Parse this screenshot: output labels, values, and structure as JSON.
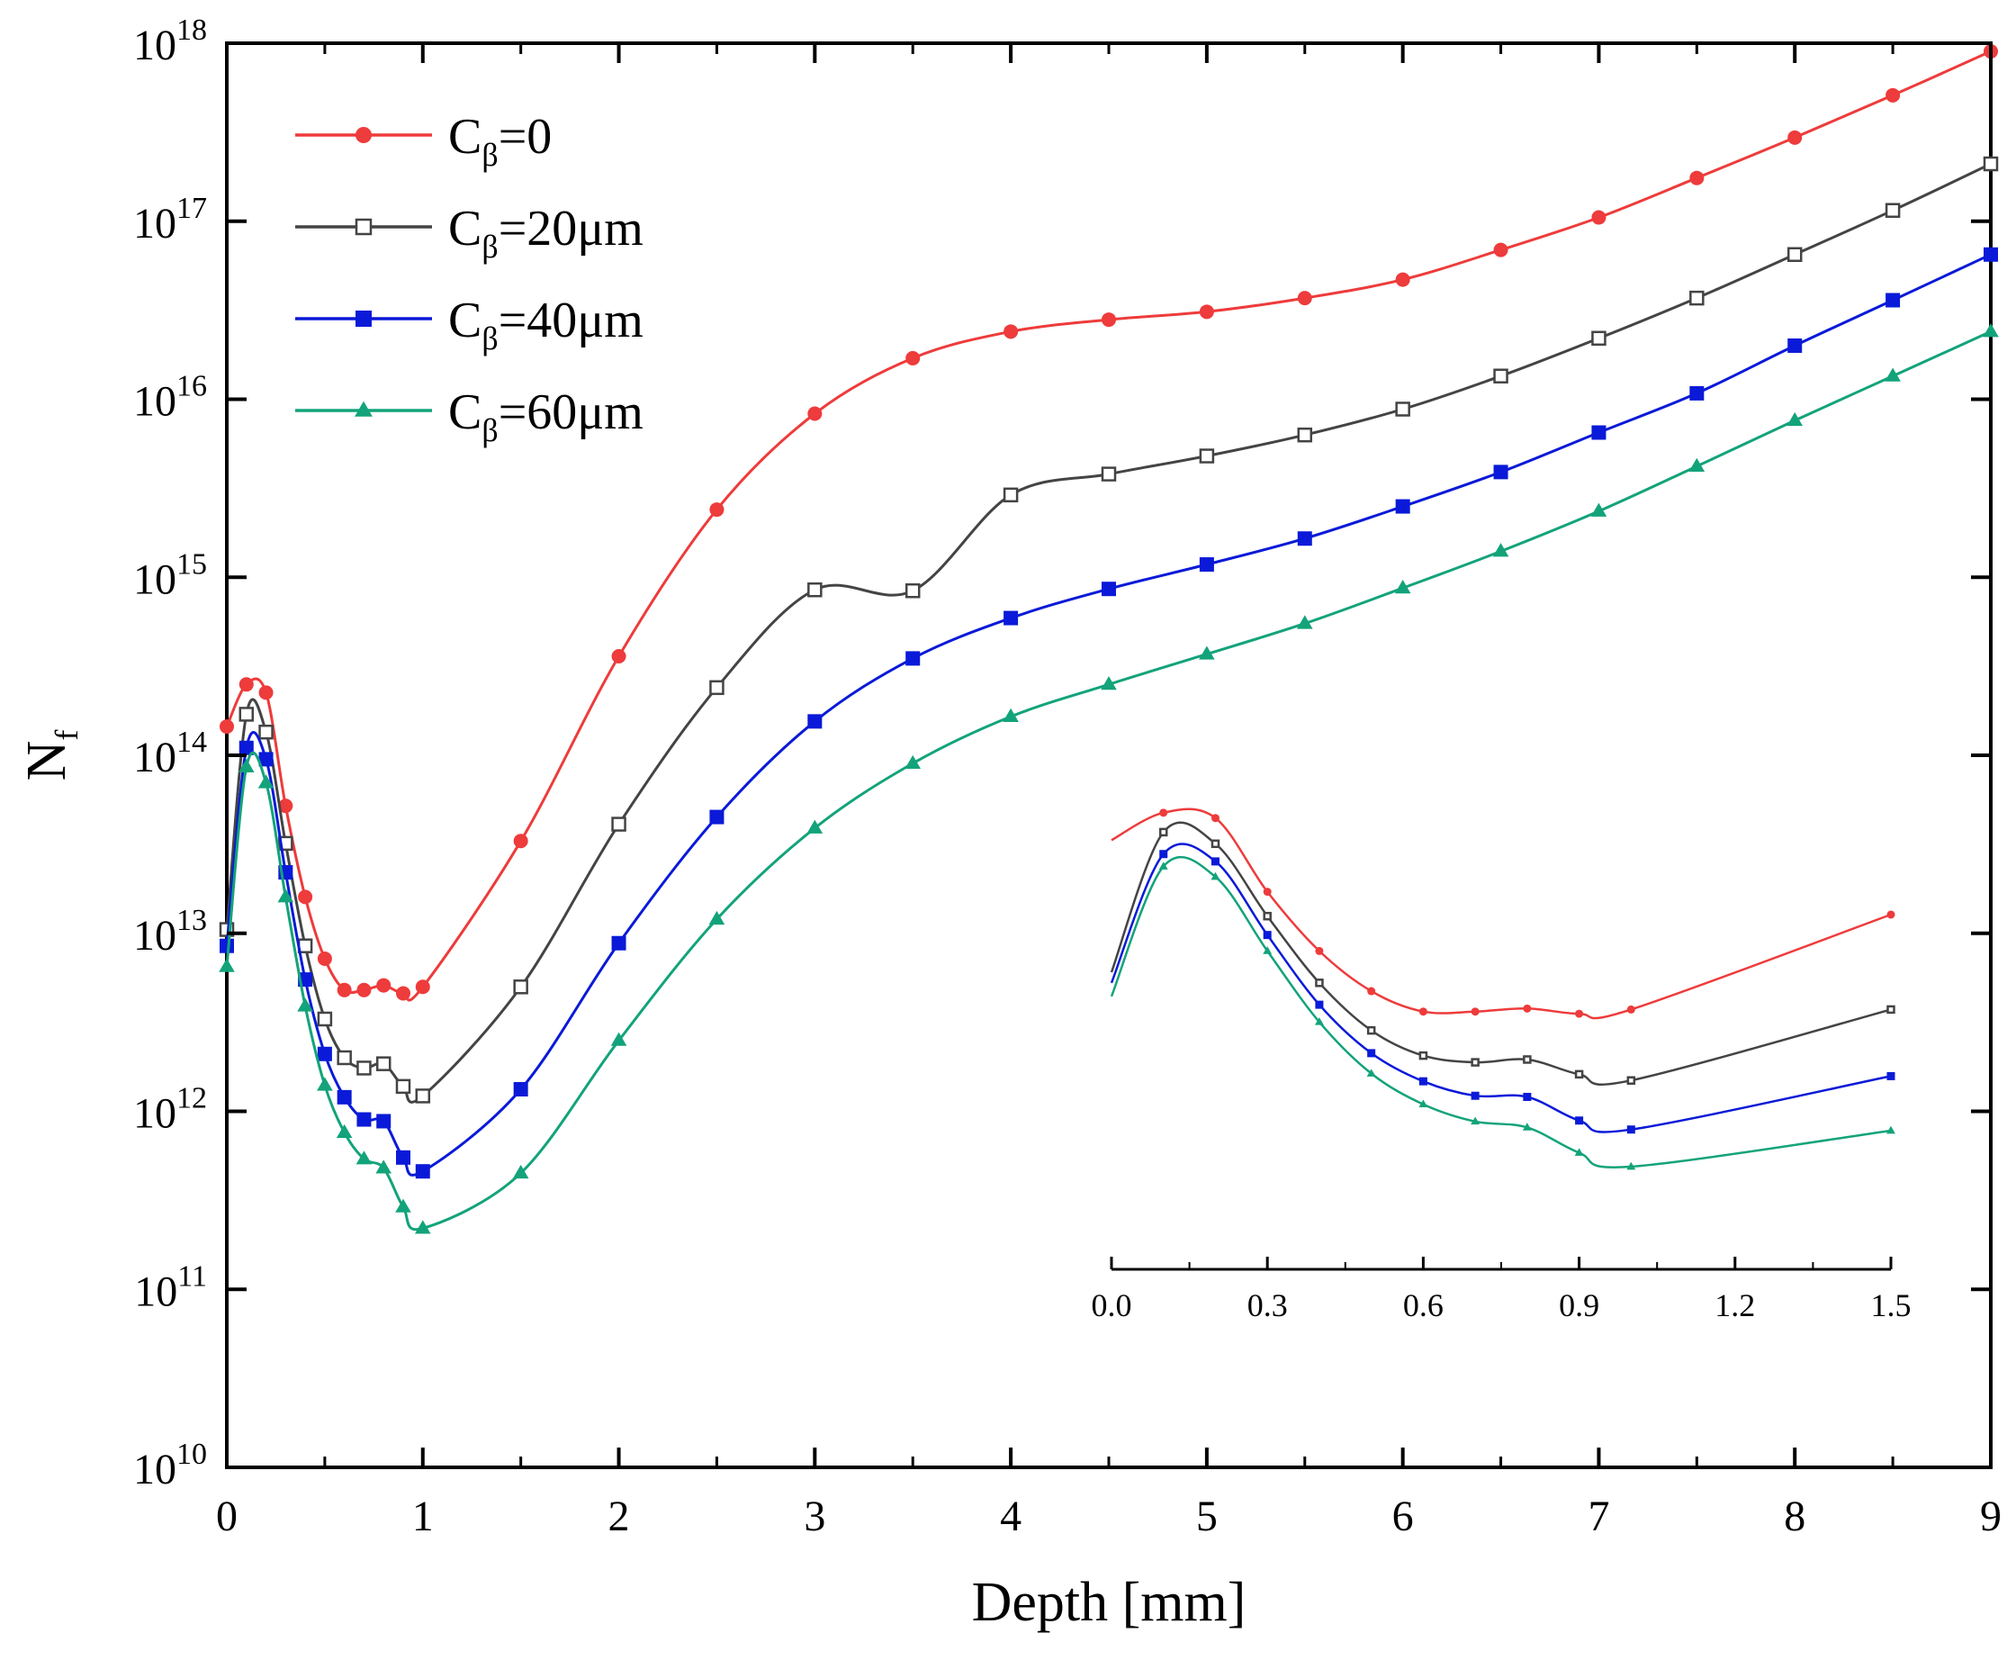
{
  "chart_data": {
    "type": "line",
    "xlabel": "Depth [mm]",
    "ylabel_main": "N",
    "ylabel_sub": "f",
    "yscale": "log",
    "xlim": [
      0,
      9
    ],
    "ylim": [
      10000000000.0,
      1e+18
    ],
    "x_ticks": [
      "0",
      "1",
      "2",
      "3",
      "4",
      "5",
      "6",
      "7",
      "8",
      "9"
    ],
    "y_ticks": [
      {
        "base": "10",
        "exp": "10",
        "value": 10000000000.0
      },
      {
        "base": "10",
        "exp": "11",
        "value": 100000000000.0
      },
      {
        "base": "10",
        "exp": "12",
        "value": 1000000000000.0
      },
      {
        "base": "10",
        "exp": "13",
        "value": 10000000000000.0
      },
      {
        "base": "10",
        "exp": "14",
        "value": 100000000000000.0
      },
      {
        "base": "10",
        "exp": "15",
        "value": 1000000000000000.0
      },
      {
        "base": "10",
        "exp": "16",
        "value": 1e+16
      },
      {
        "base": "10",
        "exp": "17",
        "value": 1e+17
      },
      {
        "base": "10",
        "exp": "18",
        "value": 1e+18
      }
    ],
    "legend_position": "top-left",
    "series": [
      {
        "name_main": "C",
        "name_sub": "β",
        "name_rest": "=0",
        "color": "#ee3b3b",
        "marker": "circle",
        "x": [
          0,
          0.1,
          0.2,
          0.3,
          0.4,
          0.5,
          0.6,
          0.7,
          0.8,
          0.9,
          1.0,
          1.5,
          2.0,
          2.5,
          3.0,
          3.5,
          4.0,
          4.5,
          5.0,
          5.5,
          6.0,
          6.5,
          7.0,
          7.5,
          8.0,
          8.5,
          9.0
        ],
        "y": [
          145000000000000.0,
          250000000000000.0,
          225000000000000.0,
          52000000000000.0,
          16000000000000.0,
          7200000000000.0,
          4800000000000.0,
          4800000000000.0,
          5100000000000.0,
          4600000000000.0,
          5000000000000.0,
          33000000000000.0,
          360000000000000.0,
          2400000000000000.0,
          8300000000000000.0,
          1.7e+16,
          2.4e+16,
          2.8e+16,
          3.1e+16,
          3.7e+16,
          4.7e+16,
          6.9e+16,
          1.05e+17,
          1.75e+17,
          2.95e+17,
          5.1e+17,
          9e+17
        ]
      },
      {
        "name_main": "C",
        "name_sub": "β",
        "name_rest": "=20μm",
        "color": "#444444",
        "marker": "square-open",
        "x": [
          0,
          0.1,
          0.2,
          0.3,
          0.4,
          0.5,
          0.6,
          0.7,
          0.8,
          0.9,
          1.0,
          1.5,
          2.0,
          2.5,
          3.0,
          3.5,
          4.0,
          4.5,
          5.0,
          5.5,
          6.0,
          6.5,
          7.0,
          7.5,
          8.0,
          8.5,
          9.0
        ],
        "y": [
          10500000000000.0,
          170000000000000.0,
          135000000000000.0,
          32000000000000.0,
          8500000000000.0,
          3300000000000.0,
          2000000000000.0,
          1750000000000.0,
          1850000000000.0,
          1380000000000.0,
          1220000000000.0,
          5000000000000.0,
          41000000000000.0,
          240000000000000.0,
          850000000000000.0,
          840000000000000.0,
          2900000000000000.0,
          3800000000000000.0,
          4800000000000000.0,
          6300000000000000.0,
          8800000000000000.0,
          1.35e+16,
          2.2e+16,
          3.7e+16,
          6.5e+16,
          1.15e+17,
          2.1e+17
        ]
      },
      {
        "name_main": "C",
        "name_sub": "β",
        "name_rest": "=40μm",
        "color": "#0a1ad8",
        "marker": "square",
        "x": [
          0,
          0.1,
          0.2,
          0.3,
          0.4,
          0.5,
          0.6,
          0.7,
          0.8,
          0.9,
          1.0,
          1.5,
          2.0,
          2.5,
          3.0,
          3.5,
          4.0,
          4.5,
          5.0,
          5.5,
          6.0,
          6.5,
          7.0,
          7.5,
          8.0,
          8.5,
          9.0
        ],
        "y": [
          8500000000000.0,
          110000000000000.0,
          95000000000000.0,
          22000000000000.0,
          5500000000000.0,
          2100000000000.0,
          1200000000000.0,
          900000000000.0,
          880000000000.0,
          550000000000.0,
          460000000000.0,
          1330000000000.0,
          8800000000000.0,
          45000000000000.0,
          155000000000000.0,
          350000000000000.0,
          590000000000000.0,
          860000000000000.0,
          1180000000000000.0,
          1650000000000000.0,
          2500000000000000.0,
          3900000000000000.0,
          6500000000000000.0,
          1.08e+16,
          2e+16,
          3.6e+16,
          6.5e+16
        ]
      },
      {
        "name_main": "C",
        "name_sub": "β",
        "name_rest": "=60μm",
        "color": "#13a37a",
        "marker": "triangle",
        "x": [
          0,
          0.1,
          0.2,
          0.3,
          0.4,
          0.5,
          0.6,
          0.7,
          0.8,
          0.9,
          1.0,
          1.5,
          2.0,
          2.5,
          3.0,
          3.5,
          4.0,
          4.5,
          5.0,
          5.5,
          6.0,
          6.5,
          7.0,
          7.5,
          8.0,
          8.5,
          9.0
        ],
        "y": [
          6500000000000.0,
          86000000000000.0,
          70000000000000.0,
          16000000000000.0,
          3900000000000.0,
          1400000000000.0,
          760000000000.0,
          540000000000.0,
          480000000000.0,
          290000000000.0,
          220000000000.0,
          450000000000.0,
          2500000000000.0,
          12000000000000.0,
          39000000000000.0,
          90000000000000.0,
          165000000000000.0,
          250000000000000.0,
          370000000000000.0,
          550000000000000.0,
          870000000000000.0,
          1400000000000000.0,
          2350000000000000.0,
          4200000000000000.0,
          7600000000000000.0,
          1.35e+16,
          2.4e+16
        ]
      }
    ],
    "inset": {
      "xlim": [
        0,
        1.5
      ],
      "x_ticks": [
        "0.0",
        "0.3",
        "0.6",
        "0.9",
        "1.2",
        "1.5"
      ],
      "yscale": "log",
      "x": [
        0,
        0.1,
        0.2,
        0.3,
        0.4,
        0.5,
        0.6,
        0.7,
        0.8,
        0.9,
        1.0,
        1.5
      ]
    }
  }
}
